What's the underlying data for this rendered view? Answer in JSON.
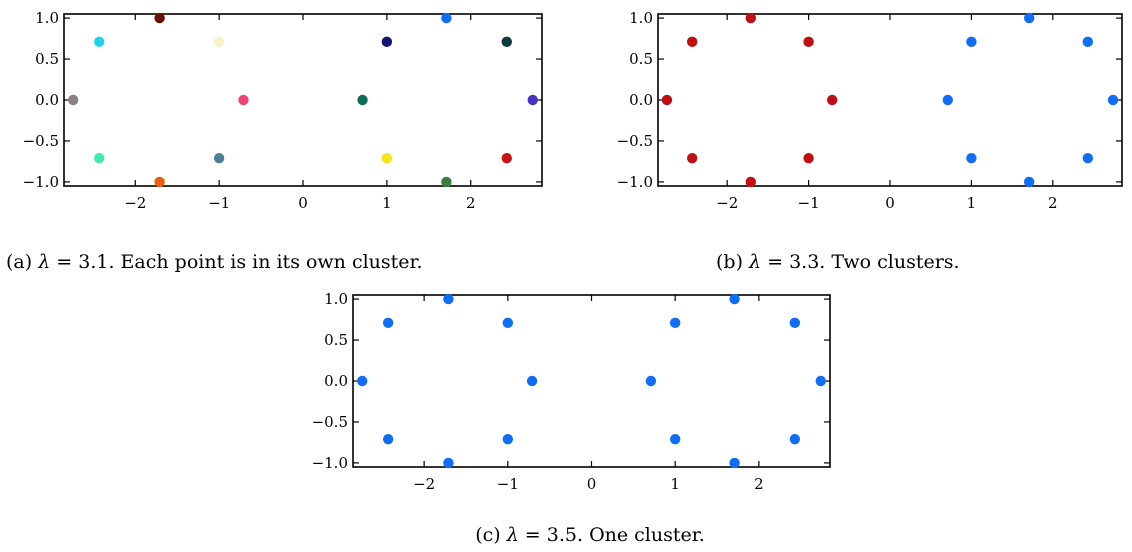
{
  "chart_data": [
    {
      "type": "scatter",
      "caption": {
        "label": "(a)",
        "lambda_symbol": "λ",
        "relation": " = 3.1.",
        "text": " Each point is in its own cluster."
      },
      "xlim": [
        -2.85,
        2.85
      ],
      "ylim": [
        -1.05,
        1.05
      ],
      "xticks": [
        -2,
        -1,
        0,
        1,
        2
      ],
      "xtick_labels": [
        "−2",
        "−1",
        "0",
        "1",
        "2"
      ],
      "yticks": [
        1.0,
        0.5,
        0.0,
        -0.5,
        -1.0
      ],
      "ytick_labels": [
        "1.0",
        "0.5",
        "0.0",
        "−0.5",
        "−1.0"
      ],
      "grid": false,
      "legend": "none",
      "points": [
        {
          "x": -1.71,
          "y": 1.0,
          "color": "#6b0f00"
        },
        {
          "x": 1.71,
          "y": 1.0,
          "color": "#0f6ef5"
        },
        {
          "x": -2.43,
          "y": 0.71,
          "color": "#22d3ea"
        },
        {
          "x": -1.0,
          "y": 0.71,
          "color": "#f8f0c6"
        },
        {
          "x": 1.0,
          "y": 0.71,
          "color": "#111675"
        },
        {
          "x": 2.43,
          "y": 0.71,
          "color": "#0f3a3e"
        },
        {
          "x": -2.74,
          "y": 0.0,
          "color": "#8c7f86"
        },
        {
          "x": -0.71,
          "y": 0.0,
          "color": "#f0447a"
        },
        {
          "x": 0.71,
          "y": 0.0,
          "color": "#0d6b57"
        },
        {
          "x": 2.74,
          "y": 0.0,
          "color": "#4a2fc8"
        },
        {
          "x": -2.43,
          "y": -0.71,
          "color": "#40eab0"
        },
        {
          "x": -1.0,
          "y": -0.71,
          "color": "#4a7f96"
        },
        {
          "x": 1.0,
          "y": -0.71,
          "color": "#f8e21a"
        },
        {
          "x": 2.43,
          "y": -0.71,
          "color": "#c81418"
        },
        {
          "x": -1.71,
          "y": -1.0,
          "color": "#e8610f"
        },
        {
          "x": 1.71,
          "y": -1.0,
          "color": "#3f7a45"
        }
      ]
    },
    {
      "type": "scatter",
      "caption": {
        "label": "(b)",
        "lambda_symbol": "λ",
        "relation": " = 3.3.",
        "text": " Two clusters."
      },
      "xlim": [
        -2.85,
        2.85
      ],
      "ylim": [
        -1.05,
        1.05
      ],
      "xticks": [
        -2,
        -1,
        0,
        1,
        2
      ],
      "xtick_labels": [
        "−2",
        "−1",
        "0",
        "1",
        "2"
      ],
      "yticks": [
        1.0,
        0.5,
        0.0,
        -0.5,
        -1.0
      ],
      "ytick_labels": [
        "1.0",
        "0.5",
        "0.0",
        "−0.5",
        "−1.0"
      ],
      "grid": false,
      "legend": "none",
      "points": [
        {
          "x": -1.71,
          "y": 1.0,
          "color": "#c00f12"
        },
        {
          "x": 1.71,
          "y": 1.0,
          "color": "#0f6ef5"
        },
        {
          "x": -2.43,
          "y": 0.71,
          "color": "#c00f12"
        },
        {
          "x": -1.0,
          "y": 0.71,
          "color": "#c00f12"
        },
        {
          "x": 1.0,
          "y": 0.71,
          "color": "#0f6ef5"
        },
        {
          "x": 2.43,
          "y": 0.71,
          "color": "#0f6ef5"
        },
        {
          "x": -2.74,
          "y": 0.0,
          "color": "#c00f12"
        },
        {
          "x": -0.71,
          "y": 0.0,
          "color": "#c00f12"
        },
        {
          "x": 0.71,
          "y": 0.0,
          "color": "#0f6ef5"
        },
        {
          "x": 2.74,
          "y": 0.0,
          "color": "#0f6ef5"
        },
        {
          "x": -2.43,
          "y": -0.71,
          "color": "#c00f12"
        },
        {
          "x": -1.0,
          "y": -0.71,
          "color": "#c00f12"
        },
        {
          "x": 1.0,
          "y": -0.71,
          "color": "#0f6ef5"
        },
        {
          "x": 2.43,
          "y": -0.71,
          "color": "#0f6ef5"
        },
        {
          "x": -1.71,
          "y": -1.0,
          "color": "#c00f12"
        },
        {
          "x": 1.71,
          "y": -1.0,
          "color": "#0f6ef5"
        }
      ]
    },
    {
      "type": "scatter",
      "caption": {
        "label": "(c)",
        "lambda_symbol": "λ",
        "relation": " = 3.5.",
        "text": " One cluster."
      },
      "xlim": [
        -2.85,
        2.85
      ],
      "ylim": [
        -1.05,
        1.05
      ],
      "xticks": [
        -2,
        -1,
        0,
        1,
        2
      ],
      "xtick_labels": [
        "−2",
        "−1",
        "0",
        "1",
        "2"
      ],
      "yticks": [
        1.0,
        0.5,
        0.0,
        -0.5,
        -1.0
      ],
      "ytick_labels": [
        "1.0",
        "0.5",
        "0.0",
        "−0.5",
        "−1.0"
      ],
      "grid": false,
      "legend": "none",
      "points": [
        {
          "x": -1.71,
          "y": 1.0,
          "color": "#0f6ef5"
        },
        {
          "x": 1.71,
          "y": 1.0,
          "color": "#0f6ef5"
        },
        {
          "x": -2.43,
          "y": 0.71,
          "color": "#0f6ef5"
        },
        {
          "x": -1.0,
          "y": 0.71,
          "color": "#0f6ef5"
        },
        {
          "x": 1.0,
          "y": 0.71,
          "color": "#0f6ef5"
        },
        {
          "x": 2.43,
          "y": 0.71,
          "color": "#0f6ef5"
        },
        {
          "x": -2.74,
          "y": 0.0,
          "color": "#0f6ef5"
        },
        {
          "x": -0.71,
          "y": 0.0,
          "color": "#0f6ef5"
        },
        {
          "x": 0.71,
          "y": 0.0,
          "color": "#0f6ef5"
        },
        {
          "x": 2.74,
          "y": 0.0,
          "color": "#0f6ef5"
        },
        {
          "x": -2.43,
          "y": -0.71,
          "color": "#0f6ef5"
        },
        {
          "x": -1.0,
          "y": -0.71,
          "color": "#0f6ef5"
        },
        {
          "x": 1.0,
          "y": -0.71,
          "color": "#0f6ef5"
        },
        {
          "x": 2.43,
          "y": -0.71,
          "color": "#0f6ef5"
        },
        {
          "x": -1.71,
          "y": -1.0,
          "color": "#0f6ef5"
        },
        {
          "x": 1.71,
          "y": -1.0,
          "color": "#0f6ef5"
        }
      ]
    }
  ]
}
